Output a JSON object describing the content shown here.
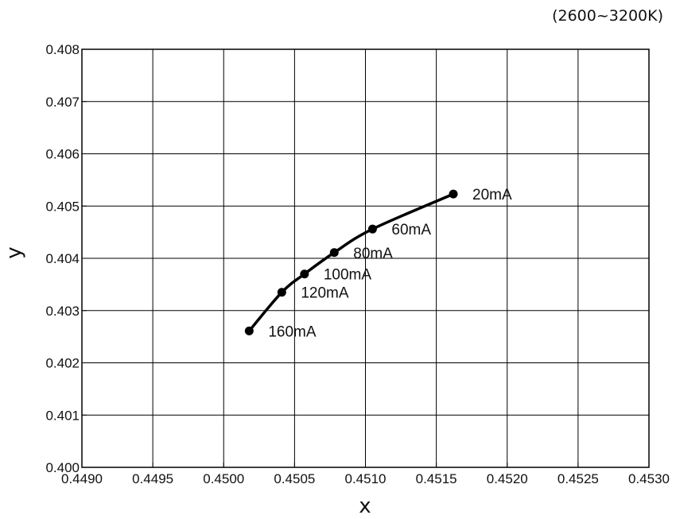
{
  "chart_data": {
    "type": "line",
    "annotation": "(2600~3200K)",
    "xlabel": "x",
    "ylabel": "y",
    "xlim": [
      0.449,
      0.453
    ],
    "ylim": [
      0.4,
      0.408
    ],
    "x_ticks": [
      "0.4490",
      "0.4495",
      "0.4500",
      "0.4505",
      "0.4510",
      "0.4515",
      "0.4520",
      "0.4525",
      "0.4530"
    ],
    "y_ticks": [
      "0.400",
      "0.401",
      "0.402",
      "0.403",
      "0.404",
      "0.405",
      "0.406",
      "0.407",
      "0.408"
    ],
    "grid": true,
    "series": [
      {
        "points": [
          {
            "x": 0.45162,
            "y": 0.40523,
            "label": "20mA"
          },
          {
            "x": 0.45105,
            "y": 0.40456,
            "label": "60mA"
          },
          {
            "x": 0.45078,
            "y": 0.40411,
            "label": "80mA"
          },
          {
            "x": 0.45057,
            "y": 0.4037,
            "label": "100mA"
          },
          {
            "x": 0.45041,
            "y": 0.40335,
            "label": "120mA"
          },
          {
            "x": 0.45018,
            "y": 0.40261,
            "label": "160mA"
          }
        ]
      }
    ]
  }
}
